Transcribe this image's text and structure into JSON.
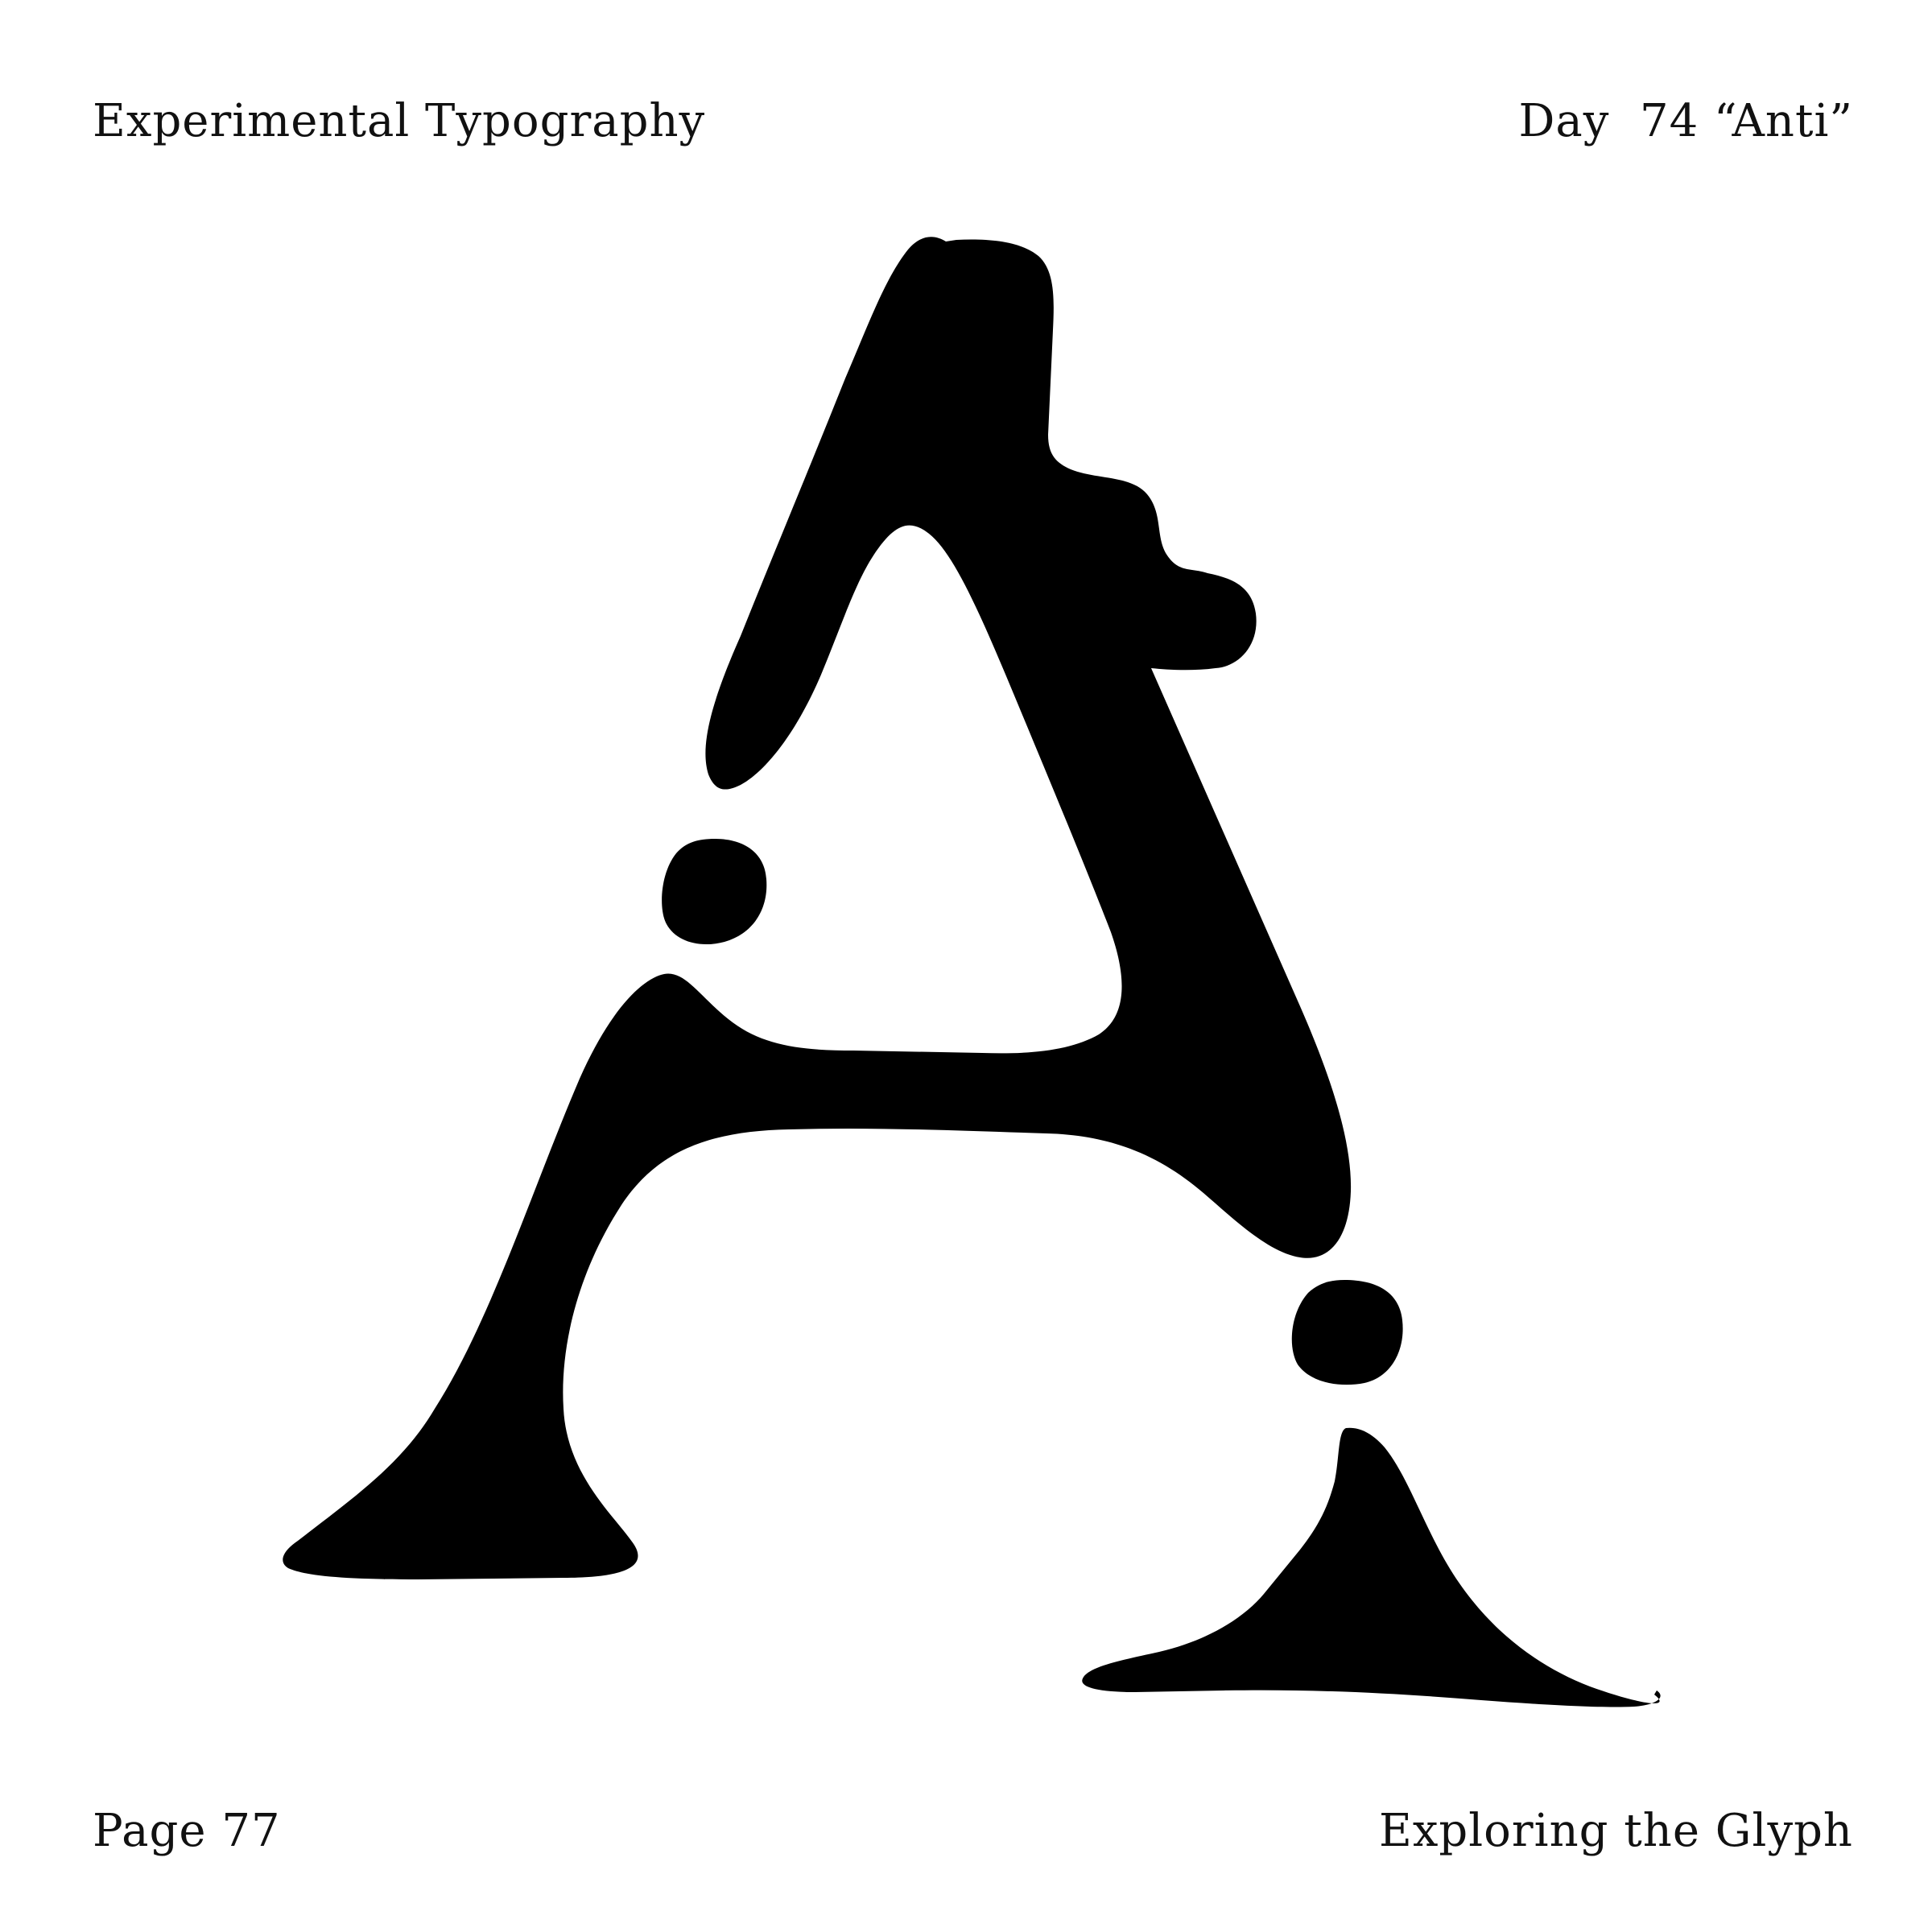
{
  "header": {
    "left": "Experimental Typography",
    "right": "Day  74 “Anti”"
  },
  "footer": {
    "left": "Page 77",
    "right": "Exploring the Glyph"
  },
  "artwork": {
    "subject": "A-icon",
    "fill": "#000000",
    "background": "#ffffff"
  }
}
